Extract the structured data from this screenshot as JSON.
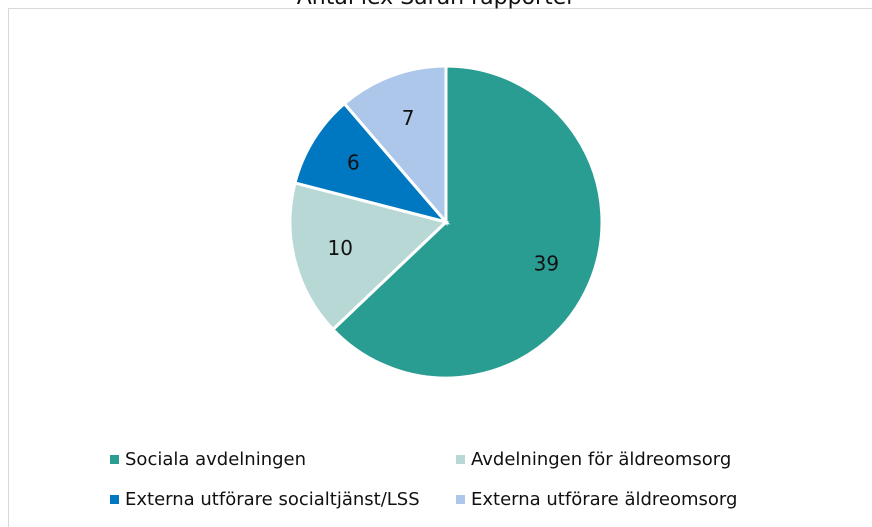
{
  "chart_data": {
    "type": "pie",
    "title": "Antal lex Sarah rapporter",
    "categories": [
      "Sociala avdelningen",
      "Avdelningen för äldreomsorg",
      "Externa utförare socialtjänst/LSS",
      "Externa utförare äldreomsorg"
    ],
    "values": [
      39,
      10,
      6,
      7
    ],
    "colors": [
      "#2a9d93",
      "#b8d8d5",
      "#0077c1",
      "#adc7ea"
    ],
    "legend": "bottom"
  }
}
